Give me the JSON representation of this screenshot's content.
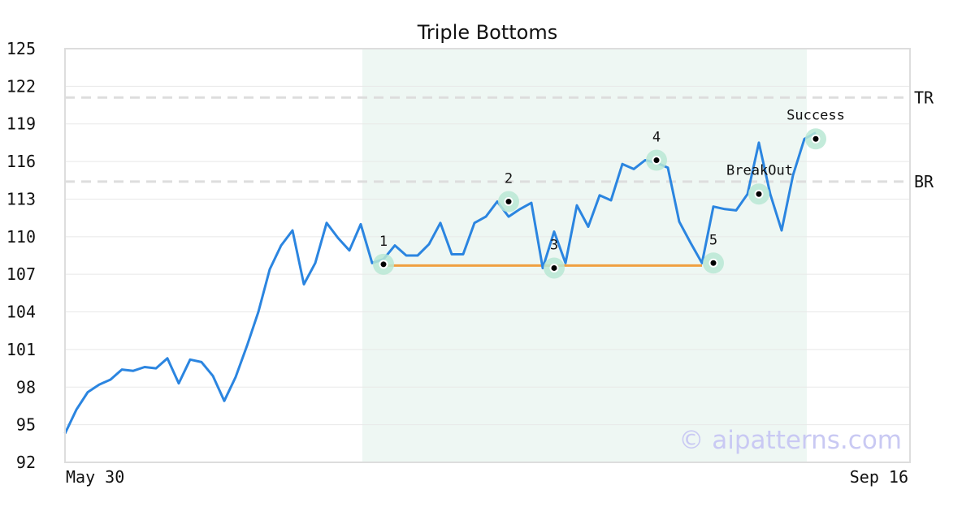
{
  "chart_data": {
    "type": "line",
    "title": "Triple Bottoms",
    "x_start_label": "May 30",
    "x_end_label": "Sep 16",
    "ylim": [
      92,
      125
    ],
    "yticks": [
      92,
      95,
      98,
      101,
      104,
      107,
      110,
      113,
      116,
      119,
      122,
      125
    ],
    "grid": true,
    "series": [
      {
        "color": "#2b85e0",
        "values": [
          94.3,
          96.2,
          97.6,
          98.2,
          98.6,
          99.4,
          99.3,
          99.6,
          99.5,
          100.3,
          98.3,
          100.2,
          100.0,
          98.9,
          96.9,
          98.8,
          101.3,
          104.0,
          107.4,
          109.3,
          110.5,
          106.2,
          107.9,
          111.1,
          109.9,
          108.9,
          111.0,
          107.9,
          108.2,
          109.3,
          108.5,
          108.5,
          109.4,
          111.1,
          108.6,
          108.6,
          111.1,
          111.6,
          112.8,
          111.6,
          112.2,
          112.7,
          107.5,
          110.4,
          107.9,
          112.5,
          110.8,
          113.3,
          112.9,
          115.8,
          115.4,
          116.1,
          115.9,
          115.5,
          111.2,
          109.5,
          107.9,
          112.4,
          112.2,
          112.1,
          113.4,
          117.5,
          113.4,
          110.5,
          114.9,
          117.8,
          118.3
        ]
      }
    ],
    "shaded_region": {
      "from_index": 26,
      "to_index": 65,
      "color": "#eef7f3"
    },
    "reference_lines": [
      {
        "label": "TR",
        "value": 121.1,
        "color": "#dddddd"
      },
      {
        "label": "BR",
        "value": 114.4,
        "color": "#dddddd"
      }
    ],
    "support_line": {
      "from_index": 28,
      "to_index": 56,
      "value": 107.7,
      "color": "#f0a040"
    },
    "annotations": [
      {
        "label": "1",
        "index": 28,
        "value": 107.8
      },
      {
        "label": "2",
        "index": 39,
        "value": 112.8
      },
      {
        "label": "3",
        "index": 43,
        "value": 107.5
      },
      {
        "label": "4",
        "index": 52,
        "value": 116.1
      },
      {
        "label": "5",
        "index": 57,
        "value": 107.9
      },
      {
        "label": "BreakOut",
        "index": 61,
        "value": 113.4
      },
      {
        "label": "Success",
        "index": 66,
        "value": 117.8
      }
    ],
    "marker_color": "#b8e8d4"
  },
  "watermark": "© aipatterns.com"
}
